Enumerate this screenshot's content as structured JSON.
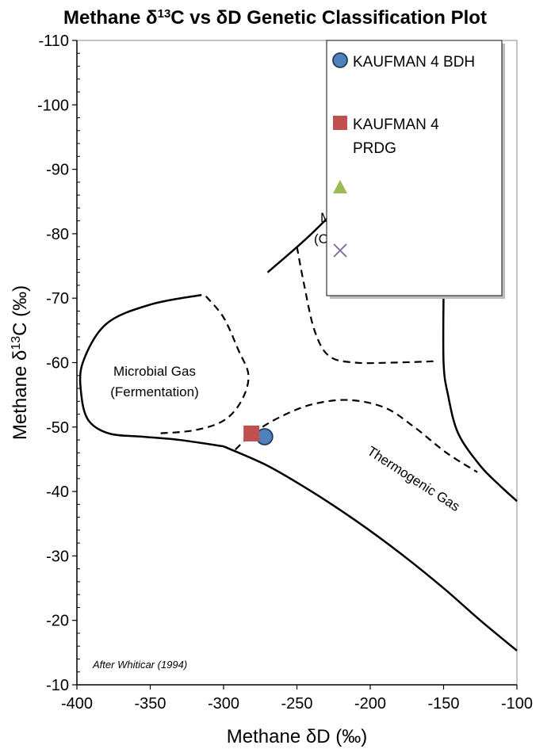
{
  "chart_data": {
    "type": "scatter",
    "title": "Methane δ13C vs δD Genetic Classification Plot",
    "xlabel": "Methane δD (‰)",
    "ylabel": "Methane δ13C (‰)",
    "xlim": [
      -400,
      -100
    ],
    "ylim": [
      -10,
      -110
    ],
    "y_axis_reversed": true,
    "x_ticks": [
      "-400",
      "-350",
      "-300",
      "-250",
      "-200",
      "-150",
      "-100"
    ],
    "y_ticks": [
      "-110",
      "-100",
      "-90",
      "-80",
      "-70",
      "-60",
      "-50",
      "-40",
      "-30",
      "-20",
      "-10"
    ],
    "grid": false,
    "legend_position": "top-right",
    "series": [
      {
        "name": "KAUFMAN 4 BDH",
        "marker": "circle",
        "color": "#4F81BD",
        "x": [
          -272
        ],
        "y": [
          -48.5
        ]
      },
      {
        "name": "KAUFMAN 4 PRDG",
        "marker": "square",
        "color": "#C0504D",
        "x": [
          -281
        ],
        "y": [
          -49
        ]
      },
      {
        "name": "",
        "marker": "triangle",
        "color": "#9BBB59",
        "x": [],
        "y": []
      },
      {
        "name": "",
        "marker": "x",
        "color": "#8064A2",
        "x": [],
        "y": []
      }
    ],
    "annotations": {
      "microbial_fermentation_line1": "Microbial Gas",
      "microbial_fermentation_line2": "(Fermentation)",
      "microbial_co2_line1": "M",
      "microbial_co2_line2": "(C",
      "thermogenic": "Thermogenic Gas",
      "credit": "After Whiticar (1994)"
    },
    "region_boundaries": {
      "outer_fermentation": [
        [
          -315,
          -70.5
        ],
        [
          -350,
          -69
        ],
        [
          -380,
          -66
        ],
        [
          -396,
          -60
        ],
        [
          -397,
          -55
        ],
        [
          -392,
          -51
        ],
        [
          -378,
          -49
        ],
        [
          -355,
          -48.5
        ],
        [
          -330,
          -48
        ],
        [
          -300,
          -47
        ]
      ],
      "outer_co2_left": [
        [
          -270,
          -74
        ],
        [
          -240,
          -80
        ],
        [
          -215,
          -86
        ],
        [
          -205,
          -90
        ]
      ],
      "outer_co2_right": [
        [
          -150,
          -71
        ],
        [
          -150,
          -60
        ],
        [
          -147,
          -55
        ],
        [
          -140,
          -49
        ],
        [
          -125,
          -44
        ],
        [
          -112,
          -41
        ],
        [
          -100,
          -38.5
        ]
      ],
      "thermogenic_lower": [
        [
          -300,
          -47
        ],
        [
          -270,
          -44
        ],
        [
          -240,
          -40
        ],
        [
          -210,
          -35.5
        ],
        [
          -180,
          -30.5
        ],
        [
          -150,
          -25
        ],
        [
          -125,
          -20
        ],
        [
          -100,
          -15.3
        ]
      ],
      "dashed_fermentation": [
        [
          -312,
          -70.3
        ],
        [
          -300,
          -67
        ],
        [
          -290,
          -62
        ],
        [
          -283,
          -58
        ],
        [
          -288,
          -54
        ],
        [
          -300,
          -51
        ],
        [
          -320,
          -49.5
        ],
        [
          -345,
          -49
        ]
      ],
      "dashed_co2": [
        [
          -250,
          -78
        ],
        [
          -245,
          -72
        ],
        [
          -238,
          -65
        ],
        [
          -228,
          -61
        ],
        [
          -210,
          -60
        ],
        [
          -185,
          -60
        ],
        [
          -157,
          -60.2
        ]
      ],
      "dashed_thermogenic": [
        [
          -292,
          -46.5
        ],
        [
          -280,
          -49
        ],
        [
          -262,
          -51.5
        ],
        [
          -240,
          -53.5
        ],
        [
          -215,
          -54.2
        ],
        [
          -190,
          -53
        ],
        [
          -170,
          -50
        ],
        [
          -148,
          -46
        ],
        [
          -127,
          -43
        ]
      ]
    }
  }
}
